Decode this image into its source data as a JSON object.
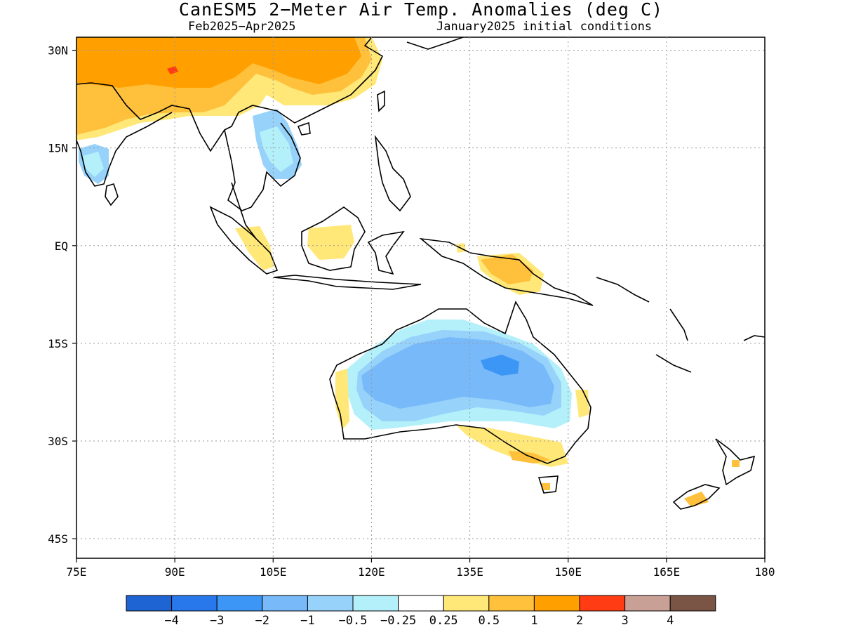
{
  "title": "CanESM5 2−Meter Air Temp. Anomalies (deg C)",
  "subtitle_left": "Feb2025−Apr2025",
  "subtitle_right": "January2025 initial conditions",
  "map": {
    "lon_range": [
      75,
      180
    ],
    "lat_range": [
      -48,
      32
    ],
    "x_ticks": [
      {
        "lon": 75,
        "label": "75E"
      },
      {
        "lon": 90,
        "label": "90E"
      },
      {
        "lon": 105,
        "label": "105E"
      },
      {
        "lon": 120,
        "label": "120E"
      },
      {
        "lon": 135,
        "label": "135E"
      },
      {
        "lon": 150,
        "label": "150E"
      },
      {
        "lon": 165,
        "label": "165E"
      },
      {
        "lon": 180,
        "label": "180"
      }
    ],
    "y_ticks": [
      {
        "lat": 30,
        "label": "30N"
      },
      {
        "lat": 15,
        "label": "15N"
      },
      {
        "lat": 0,
        "label": "EQ"
      },
      {
        "lat": -15,
        "label": "15S"
      },
      {
        "lat": -30,
        "label": "30S"
      },
      {
        "lat": -45,
        "label": "45S"
      }
    ],
    "grid": true
  },
  "colorbar": {
    "colors": [
      "#1e64d2",
      "#2878eb",
      "#3c96f5",
      "#78b9fa",
      "#96d2fa",
      "#b4f0fa",
      "#ffffff",
      "#ffe878",
      "#ffc03c",
      "#ffa000",
      "#ff3c14",
      "#c8a096",
      "#7a5546"
    ],
    "labels": [
      "−4",
      "−3",
      "−2",
      "−1",
      "−0.5",
      "−0.25",
      "0.25",
      "0.5",
      "1",
      "2",
      "3",
      "4"
    ]
  }
}
